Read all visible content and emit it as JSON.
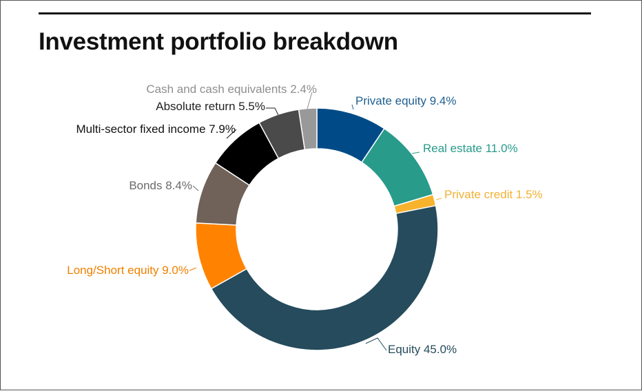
{
  "chart_data": {
    "type": "pie",
    "style": "donut",
    "title": "Investment portfolio breakdown",
    "slices": [
      {
        "name": "Private equity",
        "value": 9.4,
        "label": "Private equity 9.4%",
        "color": "#004B87"
      },
      {
        "name": "Real estate",
        "value": 11.0,
        "label": "Real estate 11.0%",
        "color": "#289B8B"
      },
      {
        "name": "Private credit",
        "value": 1.5,
        "label": "Private credit 1.5%",
        "color": "#F7B22E"
      },
      {
        "name": "Equity",
        "value": 45.0,
        "label": "Equity 45.0%",
        "color": "#254B5C"
      },
      {
        "name": "Long/Short equity",
        "value": 9.0,
        "label": "Long/Short equity 9.0%",
        "color": "#FF8300"
      },
      {
        "name": "Bonds",
        "value": 8.4,
        "label": "Bonds 8.4%",
        "color": "#706259"
      },
      {
        "name": "Multi-sector fixed income",
        "value": 7.9,
        "label": "Multi-sector fixed income 7.9%",
        "color": "#000000"
      },
      {
        "name": "Absolute return",
        "value": 5.5,
        "label": "Absolute return 5.5%",
        "color": "#4A4A4A"
      },
      {
        "name": "Cash and cash equivalents",
        "value": 2.4,
        "label": "Cash and cash equivalents 2.4%",
        "color": "#999999"
      }
    ],
    "label_colors": {
      "Private equity": "#1F5F8F",
      "Real estate": "#289B8B",
      "Private credit": "#F2B134",
      "Equity": "#254B5C",
      "Long/Short equity": "#F08000",
      "Bonds": "#6A6A6A",
      "Multi-sector fixed income": "#111111",
      "Absolute return": "#222222",
      "Cash and cash equivalents": "#8E8E8E"
    }
  }
}
